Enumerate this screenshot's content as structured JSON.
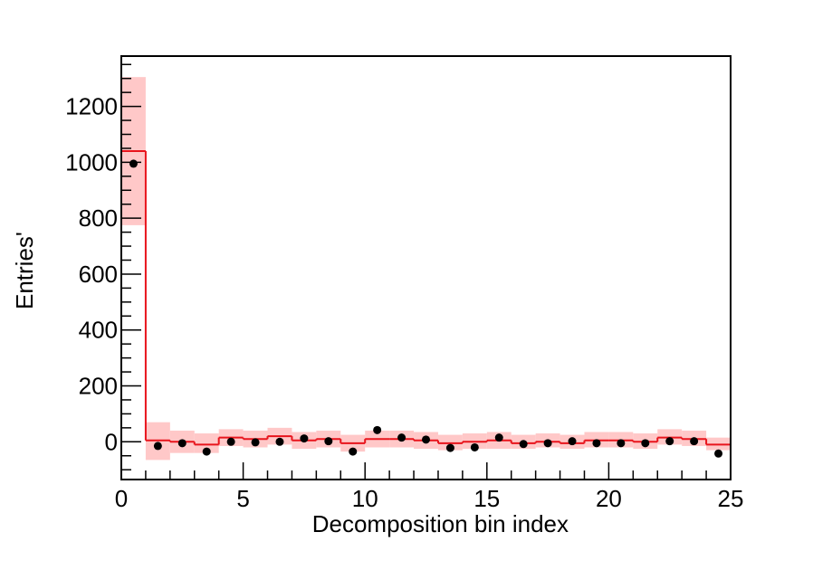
{
  "chart_data": {
    "type": "bar",
    "title": "",
    "xlabel": "Decomposition bin index",
    "ylabel": "Entries'",
    "xlim": [
      0,
      25
    ],
    "ylim": [
      -135,
      1380
    ],
    "x_ticks": [
      0,
      5,
      10,
      15,
      20,
      25
    ],
    "y_ticks": [
      0,
      200,
      400,
      600,
      800,
      1000,
      1200
    ],
    "grid": false,
    "legend": "none",
    "colors": {
      "histogram": "#e8141c",
      "uncertainty_band": "#ffc8c8",
      "points": "#000000",
      "frame": "#000000"
    },
    "series": [
      {
        "style": "step-histogram",
        "bin_edges": [
          0,
          1,
          2,
          3,
          4,
          5,
          6,
          7,
          8,
          9,
          10,
          11,
          12,
          13,
          14,
          15,
          16,
          17,
          18,
          19,
          20,
          21,
          22,
          23,
          24,
          25
        ],
        "values": [
          1040,
          5,
          0,
          -10,
          15,
          10,
          20,
          5,
          10,
          -5,
          10,
          10,
          5,
          -5,
          0,
          5,
          -5,
          0,
          -5,
          5,
          5,
          0,
          15,
          10,
          -10
        ],
        "band_low": [
          775,
          -65,
          -40,
          -40,
          -15,
          -20,
          -10,
          -25,
          -20,
          -35,
          -20,
          -20,
          -25,
          -30,
          -25,
          -25,
          -25,
          -20,
          -25,
          -20,
          -20,
          -25,
          -10,
          -15,
          -30
        ],
        "band_high": [
          1305,
          70,
          40,
          30,
          45,
          40,
          50,
          35,
          40,
          25,
          40,
          40,
          35,
          25,
          30,
          35,
          25,
          30,
          25,
          35,
          35,
          30,
          45,
          40,
          15
        ]
      },
      {
        "style": "points",
        "x": [
          0.5,
          1.5,
          2.5,
          3.5,
          4.5,
          5.5,
          6.5,
          7.5,
          8.5,
          9.5,
          10.5,
          11.5,
          12.5,
          13.5,
          14.5,
          15.5,
          16.5,
          17.5,
          18.5,
          19.5,
          20.5,
          21.5,
          22.5,
          23.5,
          24.5
        ],
        "values": [
          995,
          -15,
          -5,
          -35,
          0,
          -2,
          0,
          12,
          2,
          -35,
          42,
          15,
          8,
          -22,
          -20,
          15,
          -8,
          -5,
          2,
          -5,
          -5,
          -5,
          2,
          2,
          -42
        ]
      }
    ]
  }
}
